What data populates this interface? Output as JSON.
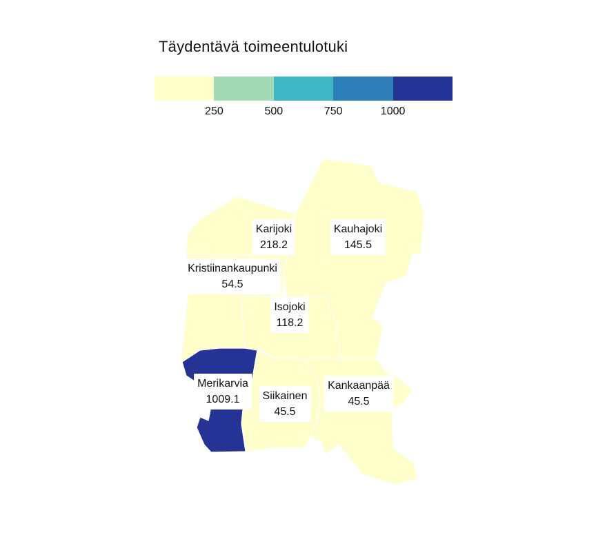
{
  "title": "Täydentävä toimeentulotuki",
  "legend": {
    "colors": [
      "#ffffcc",
      "#a1dab4",
      "#41b6c4",
      "#2c7fb8",
      "#253494"
    ],
    "breaks": [
      250,
      500,
      750,
      1000
    ],
    "labels": [
      "250",
      "500",
      "750",
      "1000"
    ]
  },
  "municipalities": [
    {
      "name": "Karijoki",
      "value": "218.2",
      "bin": 0
    },
    {
      "name": "Kauhajoki",
      "value": "145.5",
      "bin": 0
    },
    {
      "name": "Kristiinankaupunki",
      "value": "54.5",
      "bin": 0
    },
    {
      "name": "Isojoki",
      "value": "118.2",
      "bin": 0
    },
    {
      "name": "Merikarvia",
      "value": "1009.1",
      "bin": 4
    },
    {
      "name": "Siikainen",
      "value": "45.5",
      "bin": 0
    },
    {
      "name": "Kankaanpää",
      "value": "45.5",
      "bin": 0
    }
  ]
}
